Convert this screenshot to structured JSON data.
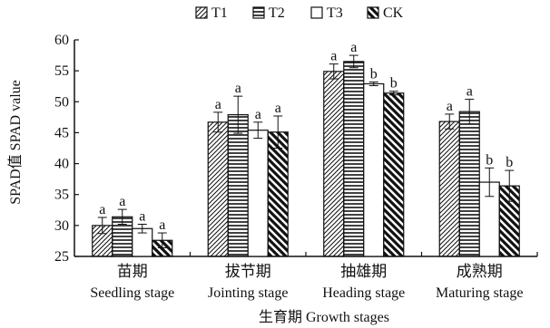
{
  "chart_data": {
    "type": "bar",
    "xlabel": "生育期 Growth stages",
    "ylabel": "SPAD值 SPAD value",
    "ylim": [
      25,
      60
    ],
    "yticks": [
      "25",
      "30",
      "35",
      "40",
      "45",
      "50",
      "55",
      "60"
    ],
    "categories": [
      {
        "zh": "苗期",
        "en": "Seedling stage"
      },
      {
        "zh": "拔节期",
        "en": "Jointing stage"
      },
      {
        "zh": "抽雄期",
        "en": "Heading stage"
      },
      {
        "zh": "成熟期",
        "en": "Maturing stage"
      }
    ],
    "series": [
      {
        "name": "T1",
        "pattern": "diagonal-up",
        "values": [
          30.0,
          46.7,
          54.9,
          46.8
        ],
        "errors": [
          1.3,
          1.6,
          1.2,
          1.2
        ],
        "labels": [
          "a",
          "a",
          "a",
          "a"
        ]
      },
      {
        "name": "T2",
        "pattern": "horizontal",
        "values": [
          31.4,
          47.9,
          56.5,
          48.4
        ],
        "errors": [
          1.2,
          3.0,
          1.0,
          2.0
        ],
        "labels": [
          "a",
          "a",
          "a",
          "a"
        ]
      },
      {
        "name": "T3",
        "pattern": "none",
        "values": [
          29.5,
          45.4,
          52.9,
          37.0
        ],
        "errors": [
          0.7,
          1.3,
          0.3,
          2.3
        ],
        "labels": [
          "a",
          "a",
          "b",
          "b"
        ]
      },
      {
        "name": "CK",
        "pattern": "diagonal-down-bold",
        "values": [
          27.6,
          45.1,
          51.4,
          36.4
        ],
        "errors": [
          1.2,
          2.6,
          0.3,
          2.5
        ],
        "labels": [
          "a",
          "a",
          "b",
          "b"
        ]
      }
    ],
    "legend_position": "top-center",
    "grid": false
  }
}
